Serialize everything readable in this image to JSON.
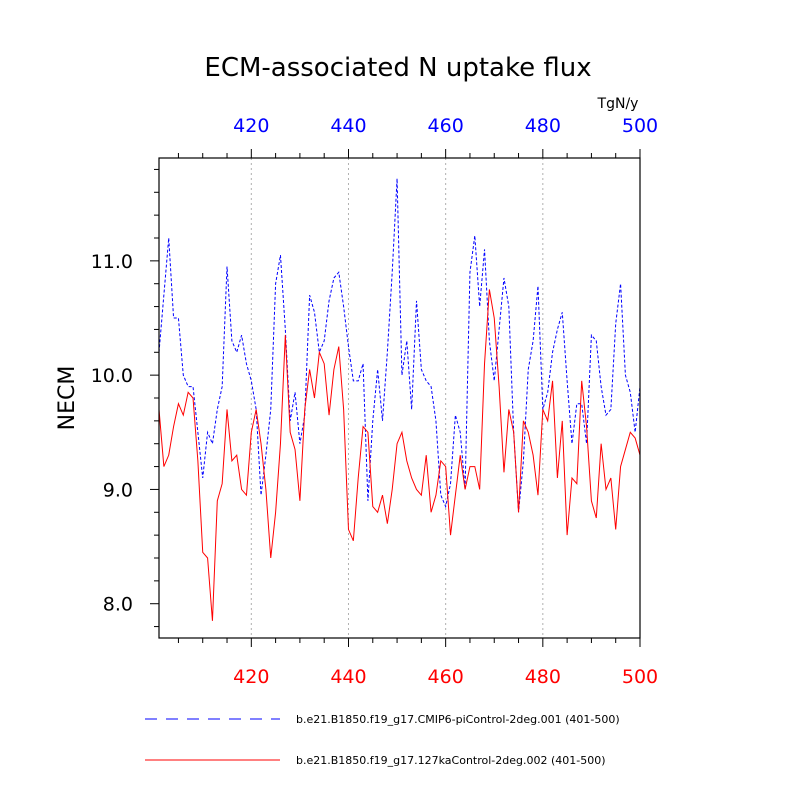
{
  "chart_data": {
    "type": "line",
    "title": "ECM-associated N uptake flux",
    "units_label": "TgN/y",
    "ylabel": "NECM",
    "xlim": [
      401,
      500
    ],
    "ylim": [
      7.7,
      11.9
    ],
    "x_ticks": [
      420,
      440,
      460,
      480,
      500
    ],
    "y_ticks": [
      8.0,
      9.0,
      10.0,
      11.0
    ],
    "y_tick_labels": [
      "8.0",
      "9.0",
      "10.0",
      "11.0"
    ],
    "grid": "vertical dotted at major x ticks",
    "colors": {
      "axis": "#000000",
      "top_ticks": "#0000ff",
      "bottom_ticks": "#ff0000",
      "grid": "#b0b0b0"
    },
    "x": [
      401,
      402,
      403,
      404,
      405,
      406,
      407,
      408,
      409,
      410,
      411,
      412,
      413,
      414,
      415,
      416,
      417,
      418,
      419,
      420,
      421,
      422,
      423,
      424,
      425,
      426,
      427,
      428,
      429,
      430,
      431,
      432,
      433,
      434,
      435,
      436,
      437,
      438,
      439,
      440,
      441,
      442,
      443,
      444,
      445,
      446,
      447,
      448,
      449,
      450,
      451,
      452,
      453,
      454,
      455,
      456,
      457,
      458,
      459,
      460,
      461,
      462,
      463,
      464,
      465,
      466,
      467,
      468,
      469,
      470,
      471,
      472,
      473,
      474,
      475,
      476,
      477,
      478,
      479,
      480,
      481,
      482,
      483,
      484,
      485,
      486,
      487,
      488,
      489,
      490,
      491,
      492,
      493,
      494,
      495,
      496,
      497,
      498,
      499,
      500
    ],
    "series": [
      {
        "name": "b.e21.B1850.f19_g17.CMIP6-piControl-2deg.001 (401-500)",
        "color": "#0000ff",
        "dash": "dashed",
        "values": [
          10.2,
          10.7,
          11.2,
          10.5,
          10.5,
          10.0,
          9.9,
          9.9,
          9.5,
          9.1,
          9.5,
          9.4,
          9.7,
          9.9,
          10.95,
          10.3,
          10.2,
          10.35,
          10.1,
          9.95,
          9.7,
          8.95,
          9.3,
          9.7,
          10.8,
          11.05,
          10.4,
          9.6,
          9.85,
          9.4,
          9.65,
          10.7,
          10.55,
          10.2,
          10.3,
          10.65,
          10.85,
          10.9,
          10.6,
          10.25,
          9.95,
          9.95,
          10.1,
          8.9,
          9.6,
          10.05,
          9.6,
          10.2,
          10.9,
          11.72,
          10.0,
          10.3,
          9.7,
          10.65,
          10.05,
          9.95,
          9.9,
          9.6,
          8.95,
          8.85,
          9.05,
          9.65,
          9.5,
          9.0,
          10.9,
          11.22,
          10.6,
          11.1,
          10.3,
          9.95,
          10.4,
          10.85,
          10.6,
          9.5,
          8.8,
          9.25,
          10.05,
          10.3,
          10.78,
          9.7,
          9.85,
          10.2,
          10.4,
          10.55,
          9.95,
          9.4,
          9.75,
          9.75,
          9.4,
          10.35,
          10.3,
          9.9,
          9.65,
          9.7,
          10.45,
          10.8,
          10.0,
          9.85,
          9.5,
          9.9
        ]
      },
      {
        "name": "b.e21.B1850.f19_g17.127kaControl-2deg.002 (401-500)",
        "color": "#ff0000",
        "dash": "solid",
        "values": [
          9.7,
          9.2,
          9.3,
          9.55,
          9.75,
          9.65,
          9.85,
          9.8,
          9.25,
          8.45,
          8.4,
          7.85,
          8.9,
          9.05,
          9.7,
          9.25,
          9.3,
          9.0,
          8.95,
          9.5,
          9.7,
          9.4,
          9.0,
          8.4,
          8.8,
          9.4,
          10.35,
          9.5,
          9.35,
          8.9,
          9.7,
          10.05,
          9.8,
          10.2,
          10.1,
          9.65,
          10.05,
          10.25,
          9.7,
          8.65,
          8.55,
          9.1,
          9.55,
          9.5,
          8.85,
          8.8,
          8.95,
          8.7,
          9.0,
          9.4,
          9.5,
          9.25,
          9.1,
          9.0,
          8.95,
          9.3,
          8.8,
          8.95,
          9.25,
          9.2,
          8.6,
          8.95,
          9.3,
          9.0,
          9.2,
          9.2,
          9.0,
          10.1,
          10.75,
          10.5,
          9.9,
          9.15,
          9.7,
          9.5,
          8.8,
          9.6,
          9.5,
          9.3,
          8.95,
          9.7,
          9.6,
          9.95,
          9.1,
          9.6,
          8.6,
          9.1,
          9.05,
          9.95,
          9.55,
          8.9,
          8.75,
          9.4,
          9.0,
          9.1,
          8.65,
          9.2,
          9.35,
          9.5,
          9.45,
          9.3
        ]
      }
    ]
  }
}
